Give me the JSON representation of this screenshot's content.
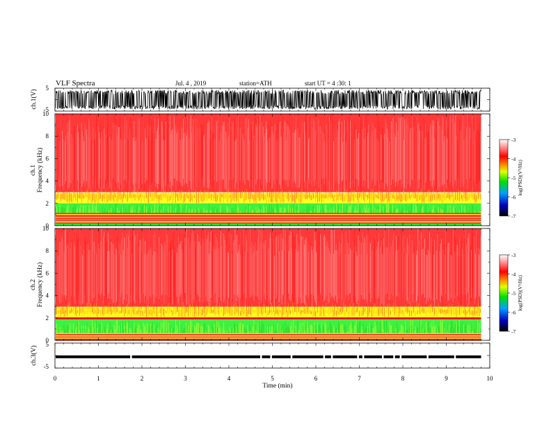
{
  "header": {
    "title": "VLF Spectra",
    "date": "Jul. 4 , 2019",
    "station": "station=ATH",
    "start": "start UT = 4 :30: 1"
  },
  "chart_data": [
    {
      "type": "line",
      "name": "ch1-waveform",
      "ylabel": "ch.1(V)",
      "ylim": [
        -5,
        5
      ],
      "yticks": [
        "5",
        "-5"
      ],
      "xlim": [
        0,
        10
      ],
      "data_end_min": 9.8,
      "signal": "noise amplitude approx ±4 V filling band"
    },
    {
      "type": "heatmap",
      "name": "ch1-spectrogram",
      "ylabel_top": "ch.1",
      "ylabel": "Frequency (kHz)",
      "ylim": [
        0,
        10
      ],
      "yticks": [
        "0",
        "2",
        "4",
        "6",
        "8",
        "10"
      ],
      "xlim": [
        0,
        10
      ],
      "data_end_min": 9.8,
      "bands": [
        {
          "from": 0,
          "to": 0.5,
          "level": "mixed",
          "desc": "green/yellow/red lines"
        },
        {
          "from": 0.5,
          "to": 1.0,
          "level": "red-lines"
        },
        {
          "from": 1.0,
          "to": 2.0,
          "level": "-5 (green)"
        },
        {
          "from": 2.0,
          "to": 3.0,
          "level": "-4.5 (yellow)"
        },
        {
          "from": 3.0,
          "to": 10.0,
          "level": "-3.5 to -4 (red/white)"
        }
      ],
      "colorbar": {
        "label": "log(PSD)(V²/Hz)",
        "ticks": [
          "-3",
          "-4",
          "-5",
          "-6",
          "-7"
        ]
      }
    },
    {
      "type": "heatmap",
      "name": "ch2-spectrogram",
      "ylabel_top": "ch.2",
      "ylabel": "Frequency (kHz)",
      "ylim": [
        0,
        10
      ],
      "yticks": [
        "0",
        "2",
        "4",
        "6",
        "8",
        "10"
      ],
      "xlim": [
        0,
        10
      ],
      "data_end_min": 9.8,
      "bands": [
        {
          "from": 0,
          "to": 0.6,
          "level": "mixed"
        },
        {
          "from": 0.6,
          "to": 1.0,
          "level": "-5 (green)"
        },
        {
          "from": 1.0,
          "to": 1.9,
          "level": "-5 (green)"
        },
        {
          "from": 1.9,
          "to": 2.05,
          "level": "red line"
        },
        {
          "from": 2.05,
          "to": 3.0,
          "level": "-4.5 (yellow)"
        },
        {
          "from": 3.0,
          "to": 10.0,
          "level": "-4 (red)"
        }
      ],
      "colorbar": {
        "label": "log(PSD)(V²/Hz)",
        "ticks": [
          "-3",
          "-4",
          "-5",
          "-6",
          "-7"
        ]
      }
    },
    {
      "type": "line",
      "name": "ch3-waveform",
      "ylabel": "ch.3(V)",
      "ylim": [
        -5,
        5
      ],
      "yticks": [
        "5",
        "-5"
      ],
      "xlim": [
        0,
        10
      ],
      "data_end_min": 9.8,
      "level": -0.5
    }
  ],
  "xaxis": {
    "label": "Time (min)",
    "ticks": [
      "0",
      "1",
      "2",
      "3",
      "4",
      "5",
      "6",
      "7",
      "8",
      "9",
      "10"
    ]
  }
}
